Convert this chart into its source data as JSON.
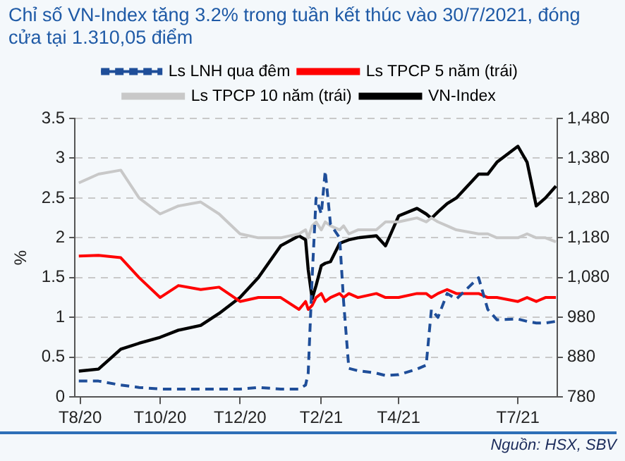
{
  "chart_data": {
    "type": "line",
    "title": "Chỉ số VN-Index tăng 3.2% trong tuần kết thúc vào 30/7/2021, đóng cửa tại 1.310,05 điểm",
    "ylabel": "%",
    "annotations": [
      "Nguồn: HSX, SBV"
    ],
    "x": [
      "2020-07-31",
      "2020-08-15",
      "2020-09-01",
      "2020-09-15",
      "2020-10-01",
      "2020-10-15",
      "2020-11-01",
      "2020-11-15",
      "2020-12-01",
      "2020-12-15",
      "2021-01-01",
      "2021-01-15",
      "2021-01-20",
      "2021-01-22",
      "2021-01-25",
      "2021-01-28",
      "2021-02-01",
      "2021-02-04",
      "2021-02-08",
      "2021-02-15",
      "2021-02-18",
      "2021-02-22",
      "2021-03-01",
      "2021-03-15",
      "2021-03-22",
      "2021-04-01",
      "2021-04-15",
      "2021-04-22",
      "2021-04-26",
      "2021-05-01",
      "2021-05-08",
      "2021-05-15",
      "2021-06-01",
      "2021-06-08",
      "2021-06-15",
      "2021-07-01",
      "2021-07-08",
      "2021-07-15",
      "2021-07-22",
      "2021-07-30"
    ],
    "series": [
      {
        "name": "Ls LNH qua đêm",
        "color": "#1f4e99",
        "line_style": "dashed",
        "values": [
          0.2,
          0.2,
          0.15,
          0.12,
          0.1,
          0.1,
          0.1,
          0.1,
          0.1,
          0.12,
          0.1,
          0.1,
          0.15,
          0.3,
          1.5,
          2.5,
          2.3,
          2.84,
          2.17,
          2.0,
          1.2,
          0.36,
          0.33,
          0.3,
          0.27,
          0.28,
          0.35,
          0.4,
          1.1,
          1.0,
          1.3,
          1.23,
          1.5,
          1.1,
          0.97,
          0.98,
          0.95,
          0.93,
          0.93,
          0.95
        ]
      },
      {
        "name": "Ls TPCP 5 năm (trái)",
        "color": "#ff0000",
        "line_style": "solid",
        "values": [
          1.77,
          1.78,
          1.75,
          1.5,
          1.25,
          1.4,
          1.35,
          1.38,
          1.2,
          1.25,
          1.25,
          1.1,
          1.2,
          1.1,
          1.15,
          1.25,
          1.3,
          1.2,
          1.25,
          1.3,
          1.25,
          1.3,
          1.25,
          1.3,
          1.25,
          1.25,
          1.3,
          1.3,
          1.25,
          1.3,
          1.35,
          1.3,
          1.3,
          1.25,
          1.25,
          1.2,
          1.25,
          1.2,
          1.25,
          1.25
        ]
      },
      {
        "name": "Ls TPCP 10 năm (trái)",
        "color": "#c8c8c8",
        "line_style": "solid",
        "values": [
          2.69,
          2.8,
          2.85,
          2.5,
          2.3,
          2.4,
          2.45,
          2.3,
          2.05,
          2.0,
          2.0,
          2.05,
          2.1,
          2.0,
          2.15,
          2.2,
          2.1,
          2.2,
          2.15,
          2.1,
          2.15,
          2.05,
          2.1,
          2.1,
          2.2,
          2.2,
          2.25,
          2.2,
          2.25,
          2.2,
          2.15,
          2.1,
          2.05,
          2.05,
          2.0,
          2.0,
          2.05,
          2.0,
          2.0,
          1.95
        ]
      },
      {
        "name": "VN-Index",
        "color": "#000000",
        "line_style": "solid",
        "axis": "y2",
        "values": [
          845,
          850,
          900,
          915,
          930,
          948,
          960,
          990,
          1030,
          1080,
          1160,
          1185,
          1175,
          1100,
          1027,
          1060,
          1110,
          1116,
          1120,
          1166,
          1170,
          1175,
          1180,
          1185,
          1160,
          1235,
          1254,
          1240,
          1229,
          1245,
          1266,
          1280,
          1340,
          1340,
          1370,
          1410,
          1370,
          1260,
          1280,
          1310
        ]
      }
    ],
    "xlim": [
      "2020-07-28",
      "2021-07-31"
    ],
    "xticks": [
      {
        "value": "2020-08-01",
        "label": "T8/20"
      },
      {
        "value": "2020-10-01",
        "label": "T10/20"
      },
      {
        "value": "2020-12-01",
        "label": "T12/20"
      },
      {
        "value": "2021-02-01",
        "label": "T2/21"
      },
      {
        "value": "2021-04-01",
        "label": "T4/21"
      },
      {
        "value": "2021-07-01",
        "label": "T7/21"
      }
    ],
    "ylim": [
      0,
      3.5
    ],
    "yticks": [
      0,
      0.5,
      1,
      1.5,
      2,
      2.5,
      3,
      3.5
    ],
    "y2lim": [
      780,
      1480
    ],
    "y2ticks": [
      {
        "value": 780,
        "label": "780"
      },
      {
        "value": 880,
        "label": "880"
      },
      {
        "value": 980,
        "label": "980"
      },
      {
        "value": 1080,
        "label": "1,080"
      },
      {
        "value": 1180,
        "label": "1,180"
      },
      {
        "value": 1280,
        "label": "1,280"
      },
      {
        "value": 1380,
        "label": "1,380"
      },
      {
        "value": 1480,
        "label": "1,480"
      }
    ],
    "grid": "y",
    "legend": "top",
    "marker": "none"
  }
}
